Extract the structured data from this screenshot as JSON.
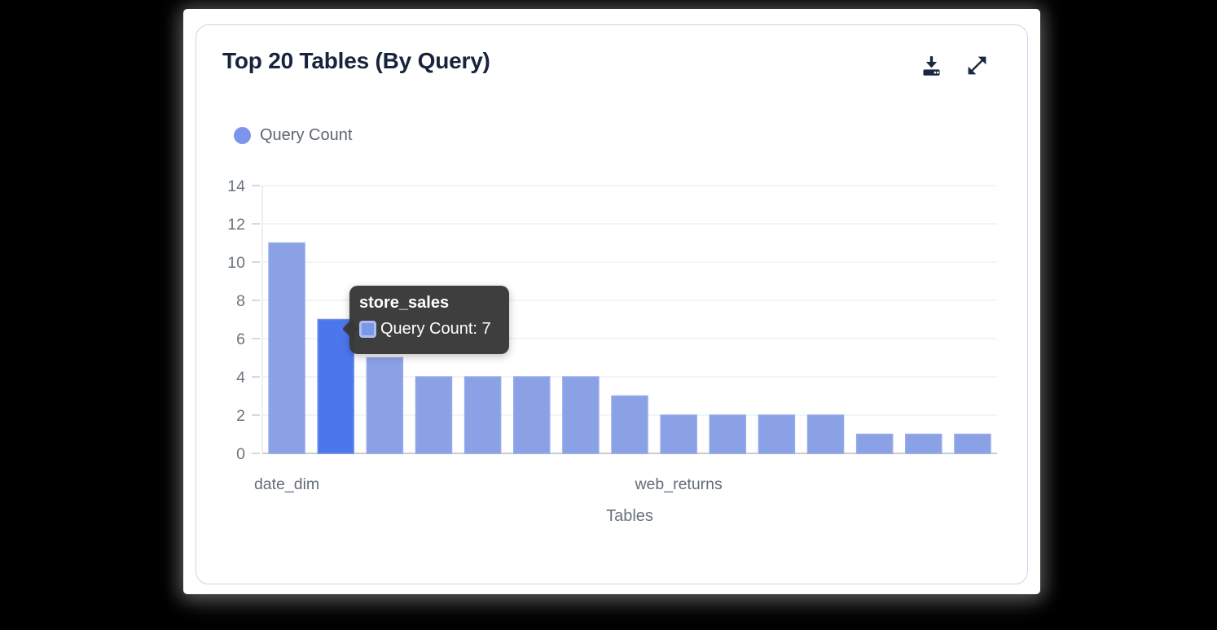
{
  "page": {
    "background": "#000000",
    "panel_background": "#ffffff"
  },
  "card": {
    "title": "Top 20 Tables (By Query)",
    "border_color": "#C7D6EA",
    "title_color": "#18233C",
    "icons": [
      {
        "name": "download-icon",
        "color": "#1B2740"
      },
      {
        "name": "expand-icon",
        "color": "#1B2740"
      }
    ]
  },
  "legend": {
    "label": "Query Count",
    "color": "#7D95E8"
  },
  "tooltip": {
    "title": "store_sales",
    "series": "Query Count",
    "value": 7,
    "text": "Query Count: 7",
    "background": "#383838",
    "swatch_fill": "#7D97E8",
    "swatch_border": "#ADBEF2"
  },
  "chart_data": {
    "type": "bar",
    "title": "Top 20 Tables (By Query)",
    "series_name": "Query Count",
    "xlabel": "Tables",
    "ylabel": "",
    "categories": [
      "date_dim",
      "store_sales",
      "",
      "",
      "",
      "",
      "",
      "",
      "web_returns",
      "",
      "",
      "",
      "",
      "",
      ""
    ],
    "values": [
      11,
      7,
      5,
      4,
      4,
      4,
      4,
      3,
      2,
      2,
      2,
      2,
      1,
      1,
      1
    ],
    "visible_x_labels": [
      {
        "index": 0,
        "label": "date_dim"
      },
      {
        "index": 8,
        "label": "web_returns"
      }
    ],
    "highlighted_index": 1,
    "highlighted_category": "store_sales",
    "y_ticks": [
      0,
      2,
      4,
      6,
      8,
      10,
      12,
      14
    ],
    "ylim": [
      0,
      14
    ],
    "grid": true,
    "legend_position": "top-left",
    "bar_color": "#8BA1E6",
    "bar_border_color": "#96A9EA",
    "bar_highlight_color": "#4C77EC",
    "bar_highlight_border_color": "#6F8DEA",
    "gridline_color": "#E9E9EC",
    "axis_line_color": "#C9CCD2",
    "left_axis_color": "#DADDE2"
  }
}
